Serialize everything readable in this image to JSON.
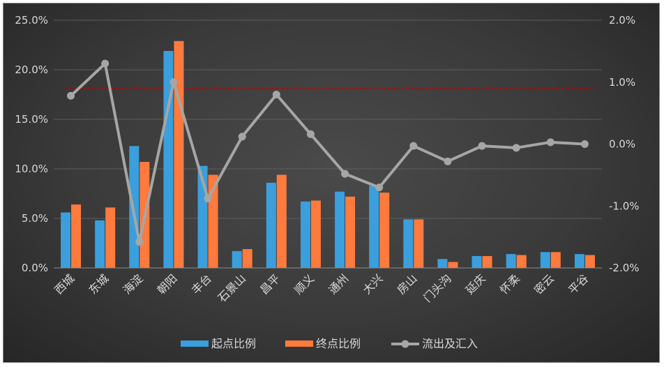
{
  "colors": {
    "series1": "#3A9FDC",
    "series2": "#FF7A3D",
    "series3": "#A6A6A6",
    "refline": "#C00000"
  },
  "chart_data": {
    "type": "bar",
    "title": "",
    "xlabel": "",
    "ylabel": "",
    "categories": [
      "西城",
      "东城",
      "海淀",
      "朝阳",
      "丰台",
      "石景山",
      "昌平",
      "顺义",
      "通州",
      "大兴",
      "房山",
      "门头沟",
      "延庆",
      "怀柔",
      "密云",
      "平谷"
    ],
    "series": [
      {
        "name": "起点比例",
        "type": "bar",
        "axis": "left",
        "values": [
          5.6,
          4.8,
          12.3,
          21.9,
          10.3,
          1.7,
          8.6,
          6.7,
          7.7,
          8.3,
          4.9,
          0.9,
          1.2,
          1.4,
          1.6,
          1.4
        ]
      },
      {
        "name": "终点比例",
        "type": "bar",
        "axis": "left",
        "values": [
          6.4,
          6.1,
          10.7,
          22.9,
          9.4,
          1.9,
          9.4,
          6.8,
          7.2,
          7.6,
          4.9,
          0.6,
          1.2,
          1.3,
          1.6,
          1.3
        ]
      },
      {
        "name": "流出及汇入",
        "type": "line",
        "axis": "right",
        "values": [
          0.78,
          1.3,
          -1.58,
          1.0,
          -0.88,
          0.12,
          0.8,
          0.16,
          -0.48,
          -0.7,
          -0.03,
          -0.28,
          -0.03,
          -0.06,
          0.03,
          0.0
        ]
      }
    ],
    "y_left": {
      "min": 0,
      "max": 25,
      "ticks": [
        "0.0%",
        "5.0%",
        "10.0%",
        "15.0%",
        "20.0%",
        "25.0%"
      ]
    },
    "y_right": {
      "min": -2,
      "max": 2,
      "ticks": [
        "-2.0%",
        "-1.0%",
        "0.0%",
        "1.0%",
        "2.0%"
      ]
    },
    "reference_line": {
      "axis": "right",
      "value": 0.9,
      "style": "dashed"
    },
    "grid": true,
    "legend": "bottom"
  }
}
